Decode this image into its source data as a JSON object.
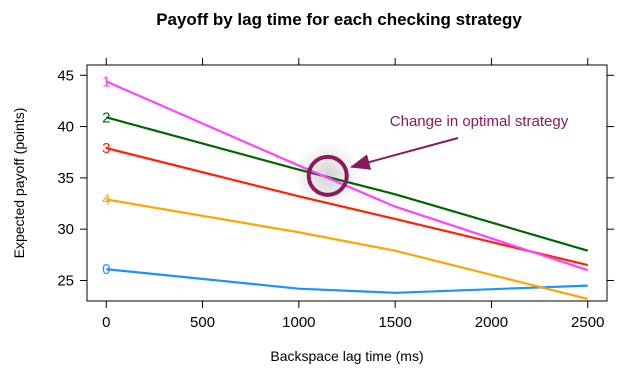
{
  "chart_data": {
    "type": "line",
    "title": "Payoff by lag time for each checking strategy",
    "xlabel": "Backspace lag time (ms)",
    "ylabel": "Expected payoff (points)",
    "xlim": [
      -100,
      2600
    ],
    "ylim": [
      23.0,
      46.0
    ],
    "x_ticks": [
      0,
      500,
      1000,
      1500,
      2000,
      2500
    ],
    "y_ticks": [
      25,
      30,
      35,
      40,
      45
    ],
    "x_tick_labels": [
      "0",
      "500",
      "1000",
      "1500",
      "2000",
      "2500"
    ],
    "y_tick_labels": [
      "25",
      "30",
      "35",
      "40",
      "45"
    ],
    "grid": false,
    "x": [
      0,
      1000,
      1500,
      2500
    ],
    "series": [
      {
        "marker": "0",
        "color": "#1e90ff",
        "values": [
          26.1,
          24.2,
          23.8,
          24.5
        ]
      },
      {
        "marker": "4",
        "color": "#ffa500",
        "values": [
          32.9,
          29.7,
          27.9,
          23.2
        ]
      },
      {
        "marker": "3",
        "color": "#ff2200",
        "values": [
          37.9,
          33.2,
          31.0,
          26.5
        ]
      },
      {
        "marker": "2",
        "color": "#006400",
        "values": [
          40.9,
          35.8,
          33.4,
          27.9
        ]
      },
      {
        "marker": "1",
        "color": "#ff44ff",
        "values": [
          44.4,
          36.2,
          32.2,
          26.0
        ]
      }
    ],
    "annotation": {
      "text": "Change in optimal strategy",
      "color": "#8b1a5a",
      "point": [
        1150,
        35.2
      ]
    }
  }
}
